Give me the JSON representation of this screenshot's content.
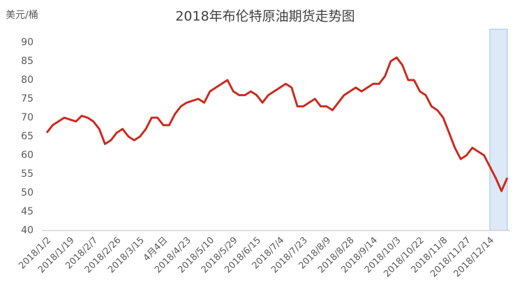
{
  "chart_data": {
    "type": "line",
    "title": "2018年布伦特原油期货走势图",
    "y_label": "美元/桶",
    "categories": [
      "2018/1/2",
      null,
      null,
      null,
      "2018/1/19",
      null,
      null,
      null,
      "2018/2/7",
      null,
      null,
      null,
      "2018/2/26",
      null,
      null,
      null,
      "2018/3/15",
      null,
      null,
      null,
      "4月4日",
      null,
      null,
      null,
      "2018/4/23",
      null,
      null,
      null,
      "2018/5/10",
      null,
      null,
      null,
      "2018/5/29",
      null,
      null,
      null,
      "2018/6/15",
      null,
      null,
      null,
      "2018/7/4",
      null,
      null,
      null,
      "2018/7/23",
      null,
      null,
      null,
      "2018/8/9",
      null,
      null,
      null,
      "2018/8/28",
      null,
      null,
      null,
      "2018/9/14",
      null,
      null,
      null,
      "2018/10/3",
      null,
      null,
      null,
      "2018/10/22",
      null,
      null,
      null,
      "2018/11/8",
      null,
      null,
      null,
      "2018/11/27",
      null,
      null,
      null,
      "2018/12/14",
      null,
      null,
      null
    ],
    "series": [
      {
        "name": "布伦特原油",
        "color": "#cc2a1f",
        "values": [
          66,
          68,
          69,
          70,
          69.5,
          69,
          70.5,
          70,
          69,
          67,
          63,
          64,
          66,
          67,
          65,
          64,
          65,
          67,
          70,
          70,
          68,
          68,
          71,
          73,
          74,
          74.5,
          75,
          74,
          77,
          78,
          79,
          80,
          77,
          76,
          76,
          77,
          76,
          74,
          76,
          77,
          78,
          79,
          78,
          73,
          73,
          74,
          75,
          73,
          73,
          72,
          74,
          76,
          77,
          78,
          77,
          78,
          79,
          79,
          81,
          85,
          86,
          84,
          80,
          80,
          77,
          76,
          73,
          72,
          70,
          66,
          62,
          59,
          60,
          62,
          61,
          60,
          57,
          54,
          50.5,
          54
        ]
      }
    ],
    "ylim": [
      40,
      90
    ],
    "yticks": [
      40,
      45,
      50,
      55,
      60,
      65,
      70,
      75,
      80,
      85,
      90
    ],
    "grid": false,
    "highlight_from": "2018/12/14"
  }
}
